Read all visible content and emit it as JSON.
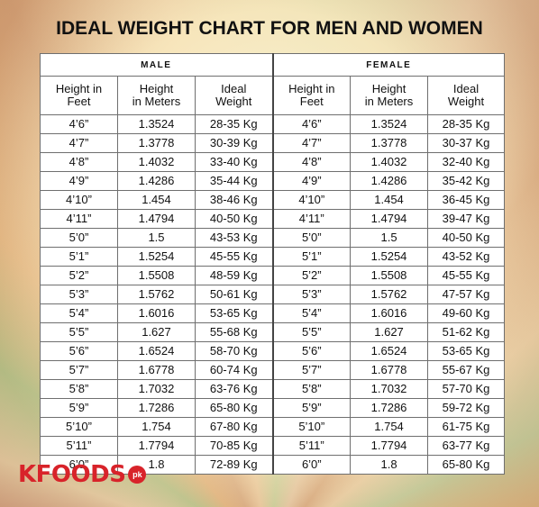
{
  "title": "IDEAL WEIGHT CHART FOR MEN AND WOMEN",
  "groups": {
    "male": "MALE",
    "female": "FEMALE"
  },
  "columns": {
    "feet": [
      "Height in",
      "Feet"
    ],
    "meters": [
      "Height",
      "in Meters"
    ],
    "weight": [
      "Ideal",
      "Weight"
    ]
  },
  "rows": [
    {
      "feet": "4’6”",
      "meters": "1.3524",
      "male": "28-35 Kg",
      "female": "28-35 Kg"
    },
    {
      "feet": "4’7”",
      "meters": "1.3778",
      "male": "30-39 Kg",
      "female": "30-37 Kg"
    },
    {
      "feet": "4’8”",
      "meters": "1.4032",
      "male": "33-40 Kg",
      "female": "32-40 Kg"
    },
    {
      "feet": "4’9”",
      "meters": "1.4286",
      "male": "35-44 Kg",
      "female": "35-42 Kg"
    },
    {
      "feet": "4’10”",
      "meters": "1.454",
      "male": "38-46 Kg",
      "female": "36-45 Kg"
    },
    {
      "feet": "4’11”",
      "meters": "1.4794",
      "male": "40-50 Kg",
      "female": "39-47 Kg"
    },
    {
      "feet": "5’0”",
      "meters": "1.5",
      "male": "43-53 Kg",
      "female": "40-50 Kg"
    },
    {
      "feet": "5’1”",
      "meters": "1.5254",
      "male": "45-55 Kg",
      "female": "43-52 Kg"
    },
    {
      "feet": "5’2”",
      "meters": "1.5508",
      "male": "48-59 Kg",
      "female": "45-55 Kg"
    },
    {
      "feet": "5’3”",
      "meters": "1.5762",
      "male": "50-61 Kg",
      "female": "47-57 Kg"
    },
    {
      "feet": "5’4”",
      "meters": "1.6016",
      "male": "53-65 Kg",
      "female": "49-60 Kg"
    },
    {
      "feet": "5’5”",
      "meters": "1.627",
      "male": "55-68 Kg",
      "female": "51-62 Kg"
    },
    {
      "feet": "5’6”",
      "meters": "1.6524",
      "male": "58-70 Kg",
      "female": "53-65 Kg"
    },
    {
      "feet": "5’7”",
      "meters": "1.6778",
      "male": "60-74 Kg",
      "female": "55-67 Kg"
    },
    {
      "feet": "5’8”",
      "meters": "1.7032",
      "male": "63-76 Kg",
      "female": "57-70 Kg"
    },
    {
      "feet": "5’9”",
      "meters": "1.7286",
      "male": "65-80 Kg",
      "female": "59-72 Kg"
    },
    {
      "feet": "5’10”",
      "meters": "1.754",
      "male": "67-80 Kg",
      "female": "61-75 Kg"
    },
    {
      "feet": "5’11”",
      "meters": "1.7794",
      "male": "70-85 Kg",
      "female": "63-77 Kg"
    },
    {
      "feet": "6’0”",
      "meters": "1.8",
      "male": "72-89 Kg",
      "female": "65-80 Kg"
    }
  ],
  "logo": {
    "text": "KFOODS",
    "badge": "pk",
    "color": "#d8232a"
  }
}
